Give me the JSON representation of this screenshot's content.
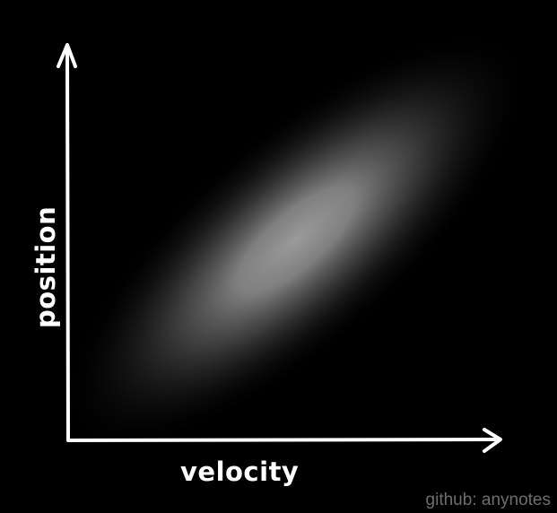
{
  "diagram": {
    "x_axis_label": "velocity",
    "y_axis_label": "position",
    "distribution": "correlated 2D Gaussian (positive correlation)"
  },
  "watermark": "github: anynotes",
  "colors": {
    "background": "#000000",
    "axes": "#ffffff",
    "blob_peak": "#9a9a9a",
    "watermark": "#6e6e6e"
  }
}
